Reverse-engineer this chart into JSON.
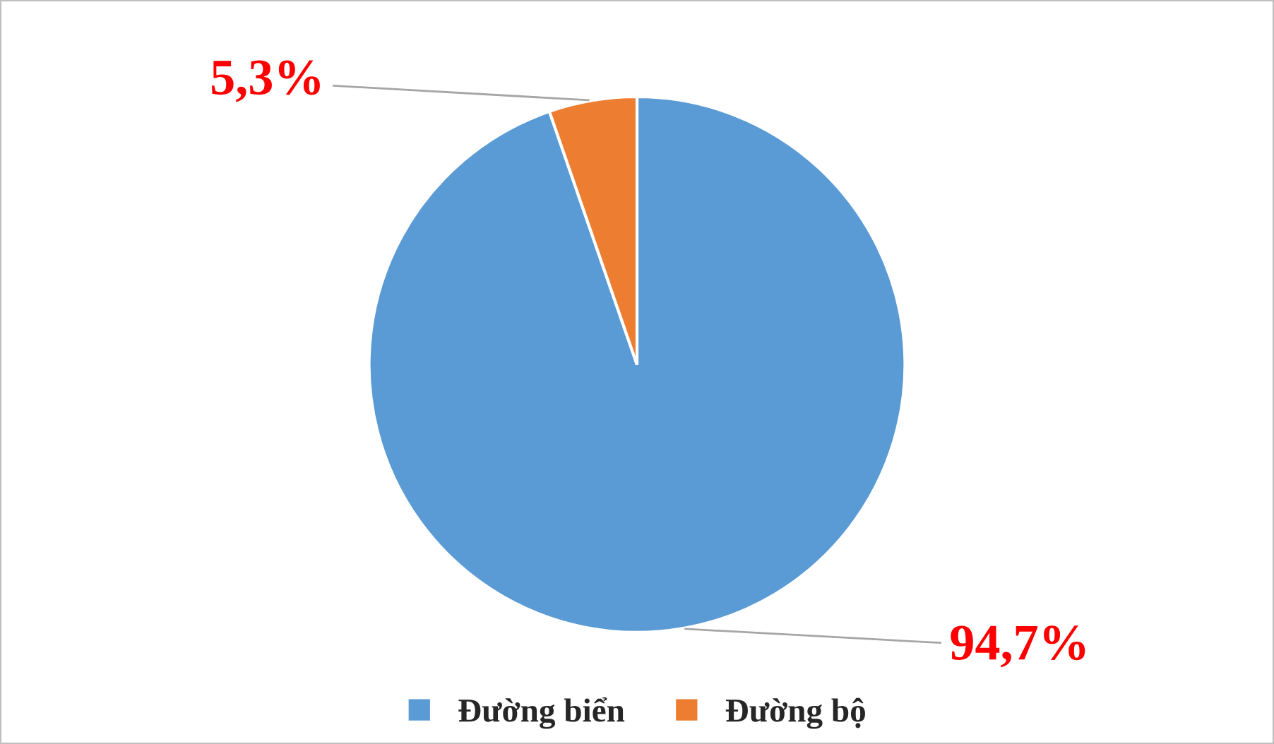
{
  "chart_data": {
    "type": "pie",
    "categories": [
      "Đường biển",
      "Đường bộ"
    ],
    "values": [
      94.7,
      5.3
    ],
    "colors": [
      "#5b9bd5",
      "#ed7d31"
    ],
    "value_labels": [
      "94,7%",
      "5,3%"
    ],
    "legend": "bottom"
  }
}
